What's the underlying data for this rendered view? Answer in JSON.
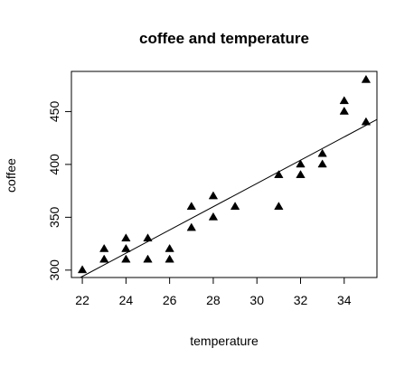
{
  "chart_data": {
    "type": "scatter",
    "title": "coffee and temperature",
    "xlabel": "temperature",
    "ylabel": "coffee",
    "xlim": [
      21.5,
      35.5
    ],
    "ylim": [
      293,
      488
    ],
    "x_ticks": [
      22,
      24,
      26,
      28,
      30,
      32,
      34
    ],
    "y_ticks": [
      300,
      350,
      400,
      450
    ],
    "marker": "filled-triangle",
    "marker_color": "#000000",
    "grid": false,
    "points": [
      {
        "x": 22,
        "y": 300
      },
      {
        "x": 23,
        "y": 310
      },
      {
        "x": 23,
        "y": 320
      },
      {
        "x": 24,
        "y": 310
      },
      {
        "x": 24,
        "y": 320
      },
      {
        "x": 24,
        "y": 330
      },
      {
        "x": 25,
        "y": 310
      },
      {
        "x": 25,
        "y": 330
      },
      {
        "x": 26,
        "y": 310
      },
      {
        "x": 26,
        "y": 320
      },
      {
        "x": 27,
        "y": 340
      },
      {
        "x": 27,
        "y": 360
      },
      {
        "x": 28,
        "y": 350
      },
      {
        "x": 28,
        "y": 370
      },
      {
        "x": 29,
        "y": 360
      },
      {
        "x": 31,
        "y": 360
      },
      {
        "x": 31,
        "y": 390
      },
      {
        "x": 32,
        "y": 390
      },
      {
        "x": 32,
        "y": 400
      },
      {
        "x": 33,
        "y": 400
      },
      {
        "x": 33,
        "y": 410
      },
      {
        "x": 34,
        "y": 450
      },
      {
        "x": 34,
        "y": 460
      },
      {
        "x": 35,
        "y": 440
      },
      {
        "x": 35,
        "y": 480
      }
    ],
    "fit_line": {
      "slope": 11.0,
      "intercept": 52.0
    }
  }
}
